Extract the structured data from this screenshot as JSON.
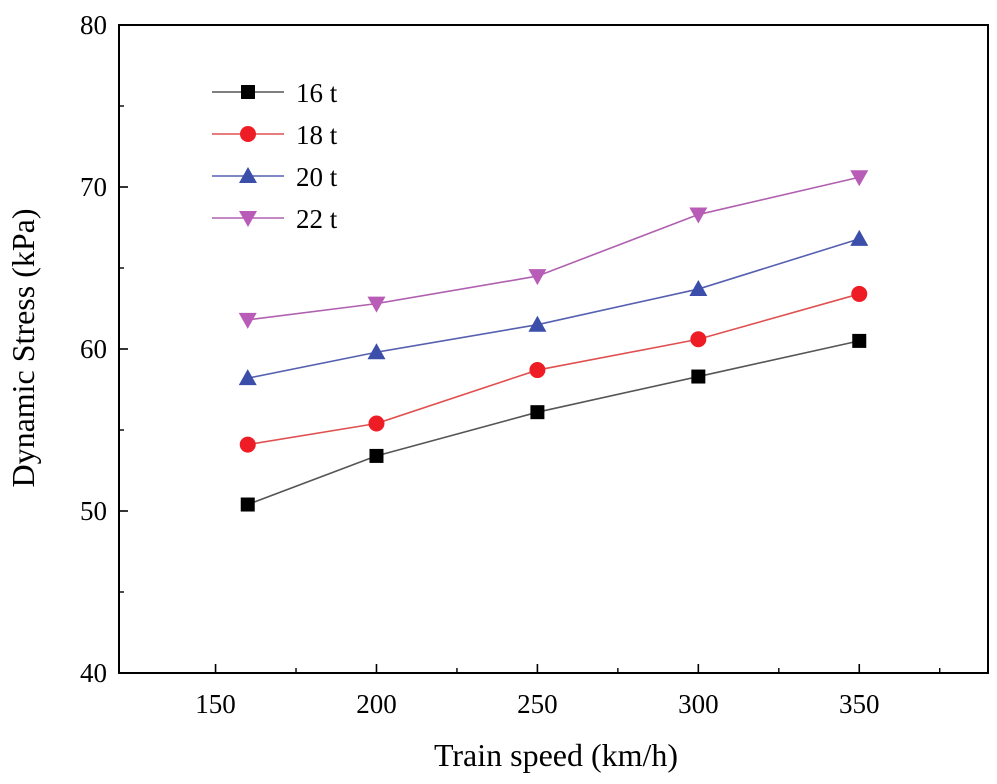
{
  "chart_data": {
    "type": "line",
    "title": "",
    "xlabel": "Train speed (km/h)",
    "ylabel": "Dynamic Stress (kPa)",
    "xlim": [
      120,
      390
    ],
    "ylim": [
      40,
      80
    ],
    "x_ticks": [
      150,
      200,
      250,
      300,
      350
    ],
    "y_ticks": [
      40,
      50,
      60,
      70,
      80
    ],
    "x": [
      160,
      200,
      250,
      300,
      350
    ],
    "legend_position": "top-left",
    "series": [
      {
        "name": "16 t",
        "marker": "square",
        "line_color": "#555555",
        "marker_color": "#000000",
        "values": [
          50.4,
          53.4,
          56.1,
          58.3,
          60.5
        ]
      },
      {
        "name": "18 t",
        "marker": "circle",
        "line_color": "#e05050",
        "marker_color": "#ee1c24",
        "values": [
          54.1,
          55.4,
          58.7,
          60.6,
          63.4
        ]
      },
      {
        "name": "20 t",
        "marker": "triangle-up",
        "line_color": "#5560b0",
        "marker_color": "#3a4eaa",
        "values": [
          58.2,
          59.8,
          61.5,
          63.7,
          66.8
        ]
      },
      {
        "name": "22 t",
        "marker": "triangle-down",
        "line_color": "#b060b0",
        "marker_color": "#b85cb8",
        "values": [
          61.8,
          62.8,
          64.5,
          68.3,
          70.6
        ]
      }
    ]
  }
}
